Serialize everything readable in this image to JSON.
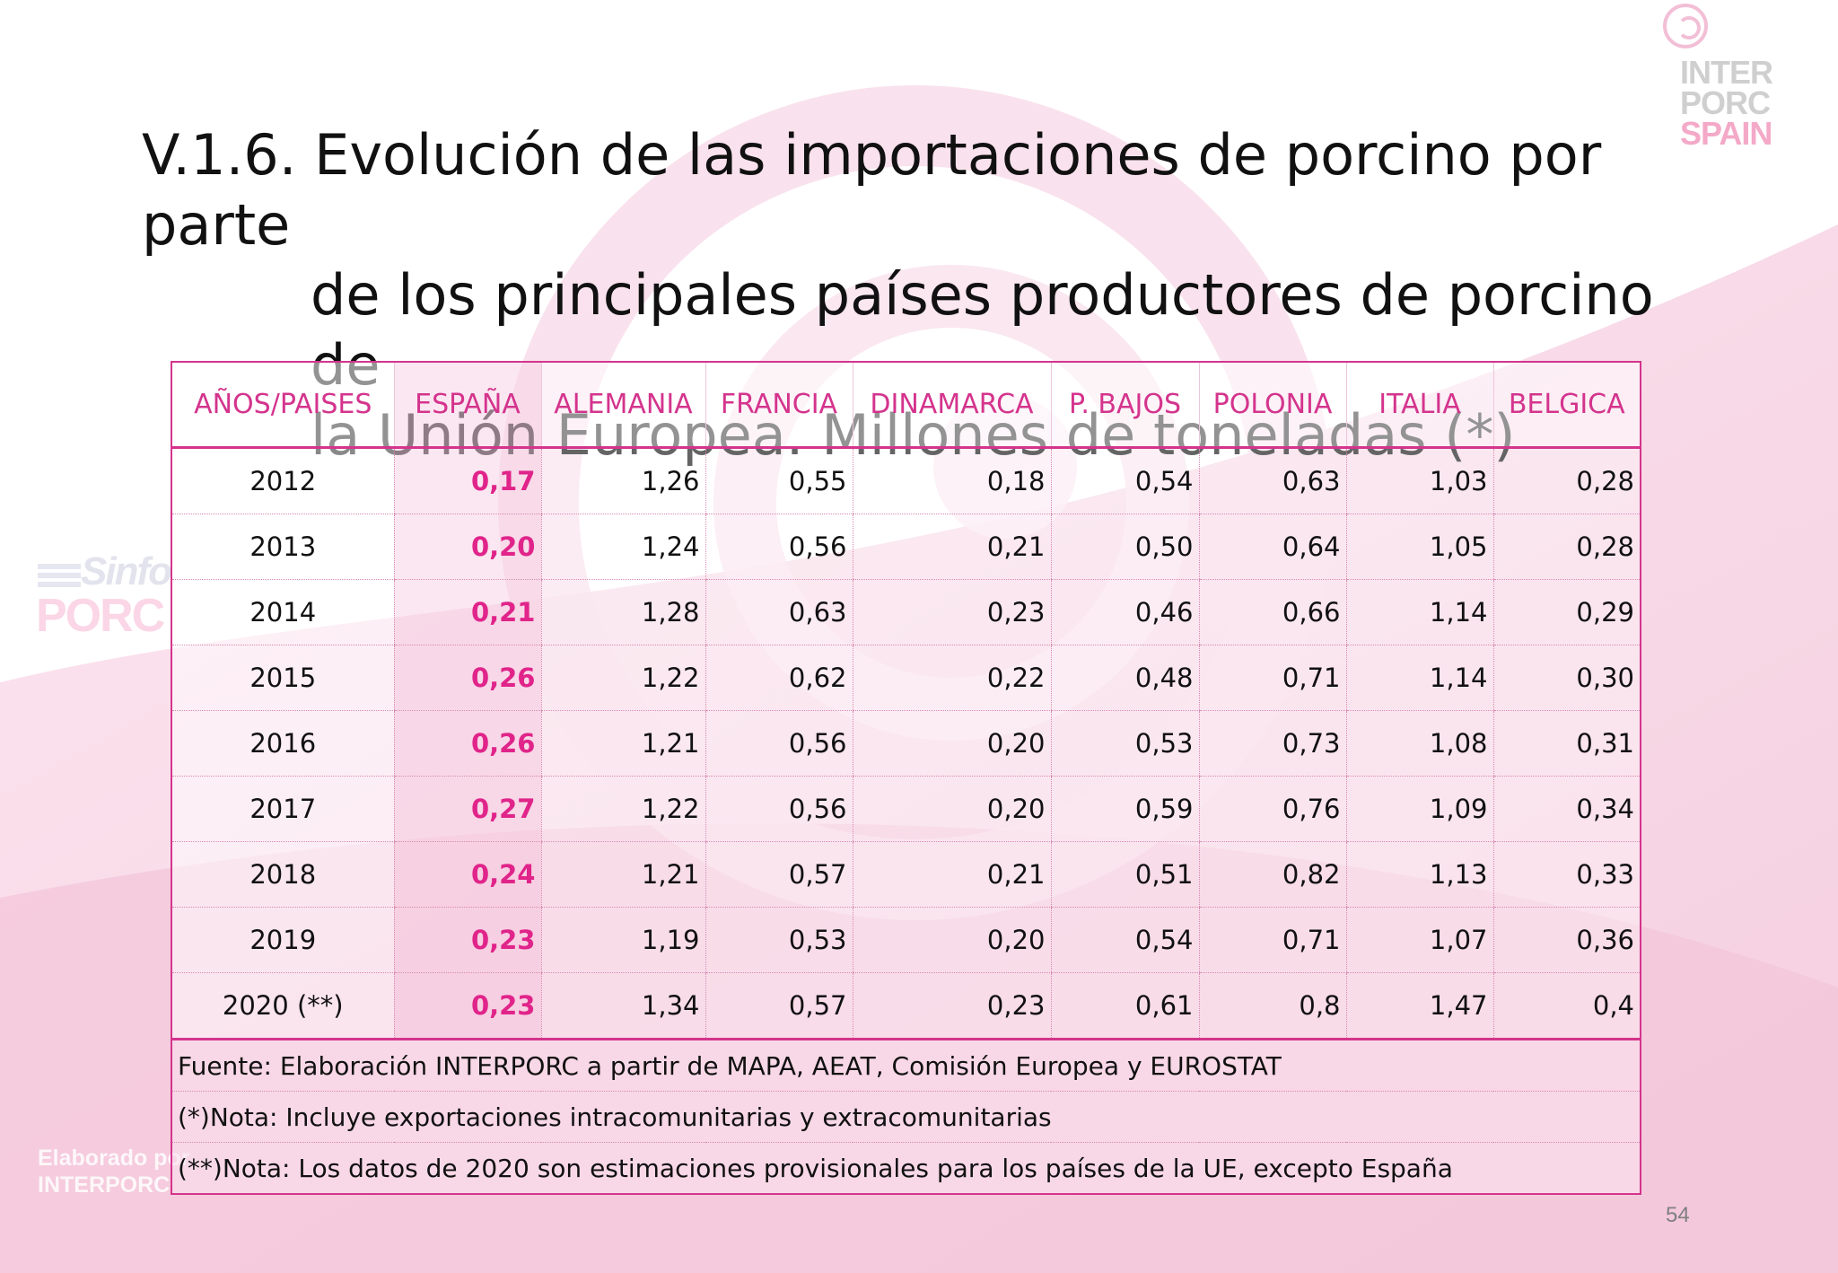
{
  "title": {
    "line1": "V.1.6. Evolución de las importaciones de porcino por parte",
    "line2": "de los principales países productores de porcino de",
    "line3": "la Unión Europea. Millones de toneladas (*)"
  },
  "logos": {
    "top_right": [
      "INTER",
      "PORC",
      "SPAIN"
    ],
    "left": [
      "Sinfo",
      "PORC"
    ]
  },
  "watermark_text": [
    "Elaborado por",
    "INTERPORC"
  ],
  "colors": {
    "accent": "#d4348d",
    "spain_value": "#e0248a",
    "background_pink": "#f6d3e3"
  },
  "table": {
    "headers": [
      "AÑOS/PAISES",
      "ESPAÑA",
      "ALEMANIA",
      "FRANCIA",
      "DINAMARCA",
      "P. BAJOS",
      "POLONIA",
      "ITALIA",
      "BELGICA"
    ],
    "rows": [
      [
        "2012",
        "0,17",
        "1,26",
        "0,55",
        "0,18",
        "0,54",
        "0,63",
        "1,03",
        "0,28"
      ],
      [
        "2013",
        "0,20",
        "1,24",
        "0,56",
        "0,21",
        "0,50",
        "0,64",
        "1,05",
        "0,28"
      ],
      [
        "2014",
        "0,21",
        "1,28",
        "0,63",
        "0,23",
        "0,46",
        "0,66",
        "1,14",
        "0,29"
      ],
      [
        "2015",
        "0,26",
        "1,22",
        "0,62",
        "0,22",
        "0,48",
        "0,71",
        "1,14",
        "0,30"
      ],
      [
        "2016",
        "0,26",
        "1,21",
        "0,56",
        "0,20",
        "0,53",
        "0,73",
        "1,08",
        "0,31"
      ],
      [
        "2017",
        "0,27",
        "1,22",
        "0,56",
        "0,20",
        "0,59",
        "0,76",
        "1,09",
        "0,34"
      ],
      [
        "2018",
        "0,24",
        "1,21",
        "0,57",
        "0,21",
        "0,51",
        "0,82",
        "1,13",
        "0,33"
      ],
      [
        "2019",
        "0,23",
        "1,19",
        "0,53",
        "0,20",
        "0,54",
        "0,71",
        "1,07",
        "0,36"
      ],
      [
        "2020 (**)",
        "0,23",
        "1,34",
        "0,57",
        "0,23",
        "0,61",
        "0,8",
        "1,47",
        "0,4"
      ]
    ],
    "notes": [
      "Fuente: Elaboración INTERPORC  a partir de MAPA, AEAT, Comisión Europea y EUROSTAT",
      "(*)Nota: Incluye exportaciones intracomunitarias y extracomunitarias",
      "(**)Nota: Los datos de 2020 son estimaciones provisionales para los países de la UE, excepto España"
    ]
  },
  "page_number": "54"
}
